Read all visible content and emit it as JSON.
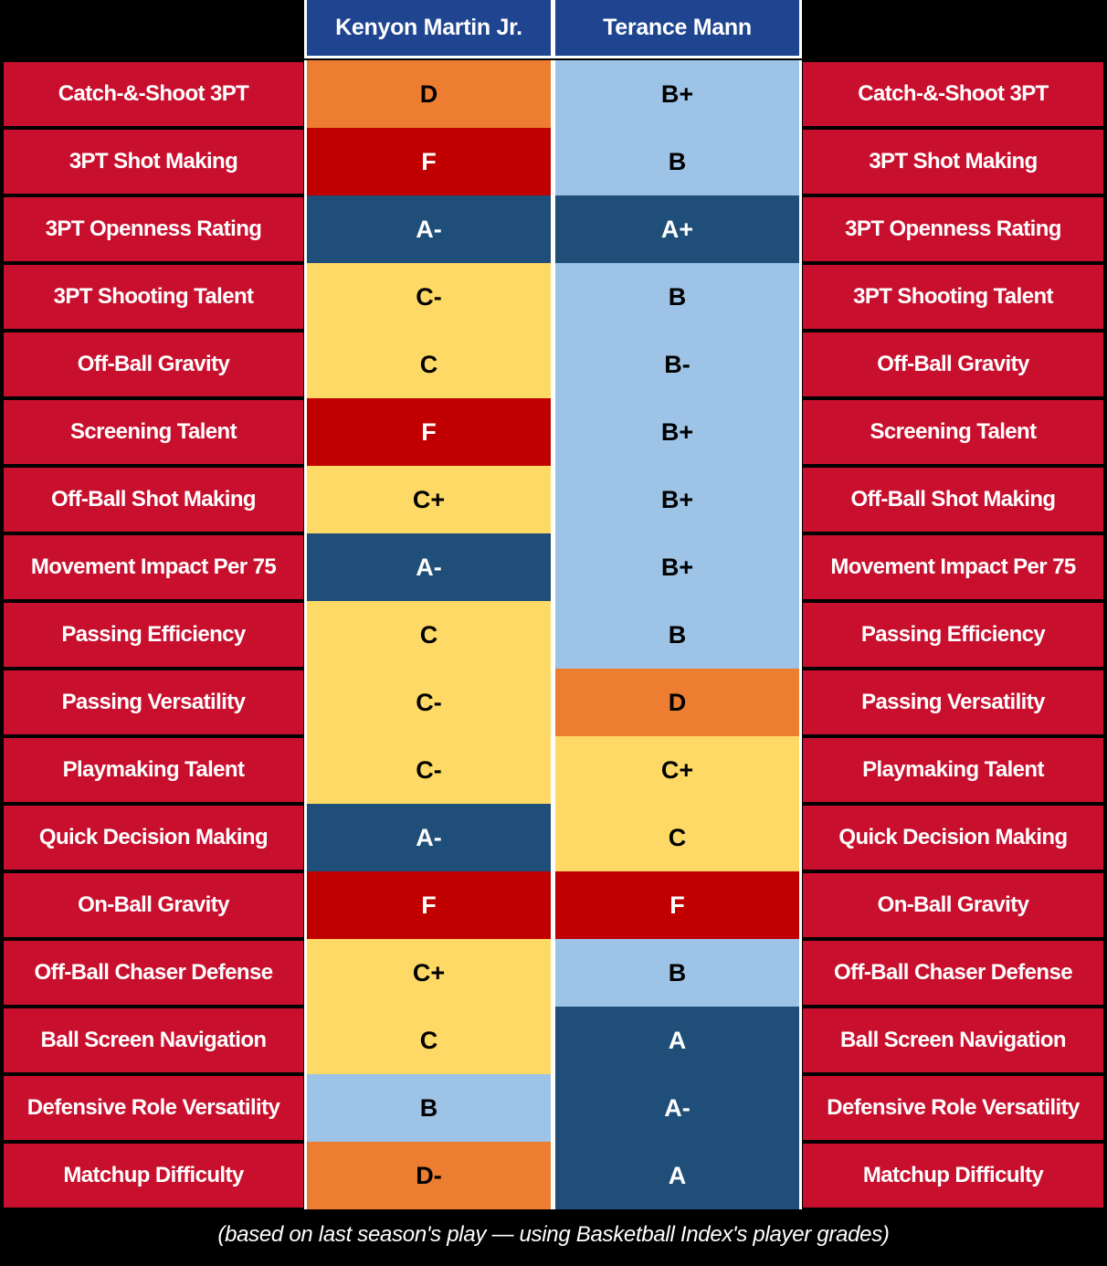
{
  "headers": {
    "player1": "Kenyon Martin Jr.",
    "player2": "Terance Mann"
  },
  "rows": [
    {
      "label": "Catch-&-Shoot 3PT",
      "p1": "D",
      "p1_color": "#ed7d31",
      "p2": "B+",
      "p2_color": "#9dc3e6"
    },
    {
      "label": "3PT Shot Making",
      "p1": "F",
      "p1_color": "#c00000",
      "p2": "B",
      "p2_color": "#9dc3e6"
    },
    {
      "label": "3PT Openness Rating",
      "p1": "A-",
      "p1_color": "#1f4e79",
      "p2": "A+",
      "p2_color": "#1f4e79"
    },
    {
      "label": "3PT Shooting Talent",
      "p1": "C-",
      "p1_color": "#ffd966",
      "p2": "B",
      "p2_color": "#9dc3e6"
    },
    {
      "label": "Off-Ball Gravity",
      "p1": "C",
      "p1_color": "#ffd966",
      "p2": "B-",
      "p2_color": "#9dc3e6"
    },
    {
      "label": "Screening Talent",
      "p1": "F",
      "p1_color": "#c00000",
      "p2": "B+",
      "p2_color": "#9dc3e6"
    },
    {
      "label": "Off-Ball Shot Making",
      "p1": "C+",
      "p1_color": "#ffd966",
      "p2": "B+",
      "p2_color": "#9dc3e6"
    },
    {
      "label": "Movement Impact Per 75",
      "p1": "A-",
      "p1_color": "#1f4e79",
      "p2": "B+",
      "p2_color": "#9dc3e6"
    },
    {
      "label": "Passing Efficiency",
      "p1": "C",
      "p1_color": "#ffd966",
      "p2": "B",
      "p2_color": "#9dc3e6"
    },
    {
      "label": "Passing Versatility",
      "p1": "C-",
      "p1_color": "#ffd966",
      "p2": "D",
      "p2_color": "#ed7d31"
    },
    {
      "label": "Playmaking Talent",
      "p1": "C-",
      "p1_color": "#ffd966",
      "p2": "C+",
      "p2_color": "#ffd966"
    },
    {
      "label": "Quick Decision Making",
      "p1": "A-",
      "p1_color": "#1f4e79",
      "p2": "C",
      "p2_color": "#ffd966"
    },
    {
      "label": "On-Ball Gravity",
      "p1": "F",
      "p1_color": "#c00000",
      "p2": "F",
      "p2_color": "#c00000"
    },
    {
      "label": "Off-Ball Chaser Defense",
      "p1": "C+",
      "p1_color": "#ffd966",
      "p2": "B",
      "p2_color": "#9dc3e6"
    },
    {
      "label": "Ball Screen Navigation",
      "p1": "C",
      "p1_color": "#ffd966",
      "p2": "A",
      "p2_color": "#1f4e79"
    },
    {
      "label": "Defensive Role Versatility",
      "p1": "B",
      "p1_color": "#9dc3e6",
      "p2": "A-",
      "p2_color": "#1f4e79"
    },
    {
      "label": "Matchup Difficulty",
      "p1": "D-",
      "p1_color": "#ed7d31",
      "p2": "A",
      "p2_color": "#1f4e79"
    }
  ],
  "footnote": "(based on last season's play — using Basketball Index's player grades)"
}
